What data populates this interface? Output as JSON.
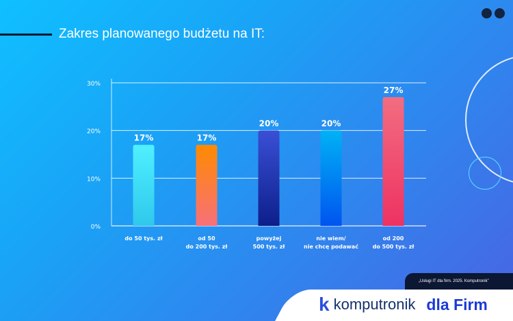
{
  "title": "Zakres planowanego budżetu na IT:",
  "source": "„Usługi IT dla firm. 2025. Komputronik”",
  "logo": {
    "mark": "k",
    "name": "komputronik",
    "suffix": "dla Firm"
  },
  "chart_data": {
    "type": "bar",
    "title": "Zakres planowanego budżetu na IT:",
    "categories": [
      [
        "do 50 tys. zł"
      ],
      [
        "od 50",
        "do 200 tys. zł"
      ],
      [
        "powyżej",
        "500 tys. zł"
      ],
      [
        "nie wiem/",
        "nie chcę podawać"
      ],
      [
        "od 200",
        "do 500 tys. zł"
      ]
    ],
    "values": [
      17,
      17,
      20,
      20,
      27
    ],
    "value_labels": [
      "17%",
      "17%",
      "20%",
      "20%",
      "27%"
    ],
    "colors": [
      [
        "#4ff0ff",
        "#2fc8ec"
      ],
      [
        "#ff8a00",
        "#f7707a"
      ],
      [
        "#3a4fd6",
        "#0d1f8a"
      ],
      [
        "#00b2f5",
        "#0054f0"
      ],
      [
        "#f26d80",
        "#ee3262"
      ]
    ],
    "ylim": [
      0,
      30
    ],
    "yticks": [
      0,
      10,
      20,
      30
    ],
    "ytick_labels": [
      "0%",
      "10%",
      "20%",
      "30%"
    ],
    "grid": true,
    "xlabel": "",
    "ylabel": ""
  }
}
